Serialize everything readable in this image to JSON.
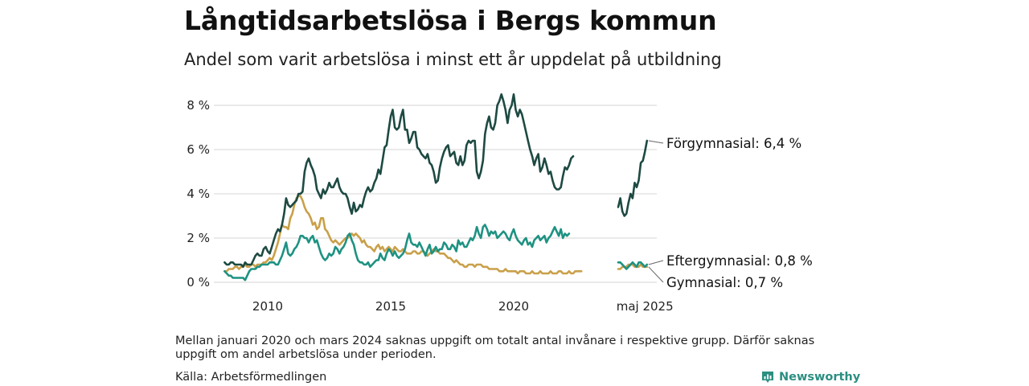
{
  "header": {
    "title": "Långtidsarbetslösa i Bergs kommun",
    "subtitle": "Andel som varit arbetslösa i minst ett år uppdelat på utbildning"
  },
  "footer": {
    "note": "Mellan januari 2020 och mars 2024 saknas uppgift om totalt antal invånare i respektive grupp. Därför saknas uppgift om andel arbetslösa under perioden.",
    "source": "Källa: Arbetsförmedlingen",
    "brand": "Newsworthy",
    "brand_icon": "newsworthy-logo-icon"
  },
  "colors": {
    "forgymnasial": "#1d4a42",
    "eftergymnasial": "#1e9282",
    "gymnasial": "#c9a04a",
    "grid": "#dddddd",
    "brand": "#2b8f81"
  },
  "chart_data": {
    "type": "line",
    "y_unit": "%",
    "ylim": [
      0,
      8.6
    ],
    "yticks": [
      "0 %",
      "2 %",
      "4 %",
      "6 %",
      "8 %"
    ],
    "xticks": [
      "2010",
      "2015",
      "2020",
      "maj 2025"
    ],
    "grid": "horizontal",
    "series": [
      {
        "name": "Förgymnasial",
        "end_label": "Förgymnasial: 6,4 %",
        "segments": [
          {
            "start": "2008-04",
            "values": [
              0.9,
              0.8,
              0.8,
              0.9,
              0.9,
              0.8,
              0.8,
              0.8,
              0.8,
              0.7,
              0.9,
              0.8,
              0.8,
              0.8,
              1.0,
              1.2,
              1.3,
              1.2,
              1.2,
              1.5,
              1.6,
              1.4,
              1.3,
              1.6,
              1.9,
              2.2,
              2.4,
              2.3,
              2.6,
              3.1,
              3.8,
              3.5,
              3.4,
              3.5,
              3.6,
              3.7,
              4.0,
              4.0,
              4.1,
              5.0,
              5.4,
              5.6,
              5.3,
              5.1,
              4.8,
              4.2,
              4.0,
              3.8,
              4.2,
              4.0,
              4.2,
              4.5,
              4.3,
              4.3,
              4.5,
              4.7,
              4.3,
              4.1,
              4.0,
              4.0,
              3.8,
              3.4,
              3.1,
              3.6,
              3.2,
              3.3,
              3.5,
              3.4,
              3.8,
              4.1,
              4.3,
              4.1,
              4.2,
              4.5,
              4.7,
              5.1,
              4.9,
              5.5,
              6.1,
              6.2,
              6.9,
              7.5,
              7.8,
              7.0,
              6.9,
              7.0,
              7.5,
              7.8,
              6.9,
              6.9,
              6.3,
              6.5,
              6.8,
              6.8,
              6.1,
              6.0,
              5.8,
              5.7,
              5.6,
              5.8,
              5.4,
              5.3,
              5.0,
              4.5,
              4.6,
              5.2,
              5.6,
              5.9,
              6.1,
              6.2,
              5.7,
              5.8,
              5.9,
              5.4,
              5.3,
              5.7,
              5.3,
              5.5,
              6.2,
              6.4,
              6.3,
              6.4,
              6.4,
              5.0,
              4.7,
              5.0,
              5.5,
              6.7,
              7.2,
              7.5,
              7.0,
              6.9,
              7.2,
              8.0,
              8.2,
              8.5,
              8.2,
              7.8,
              7.2,
              7.8,
              8.0,
              8.5,
              7.8,
              7.5,
              7.8,
              7.6,
              7.2,
              6.8,
              6.4,
              6.0,
              5.7,
              5.3,
              5.6,
              5.8,
              5.0,
              5.2,
              5.6,
              5.3,
              4.9,
              5.0,
              4.6,
              4.3,
              4.2,
              4.2,
              4.3,
              4.8,
              5.2,
              5.1,
              5.3,
              5.6,
              5.7
            ]
          },
          {
            "start": "2024-04",
            "values": [
              3.4,
              3.8,
              3.2,
              3.0,
              3.1,
              3.6,
              4.0,
              3.8,
              4.5,
              4.3,
              4.6,
              5.4,
              5.5,
              5.9,
              6.4
            ]
          }
        ]
      },
      {
        "name": "Eftergymnasial",
        "end_label": "Eftergymnasial: 0,8 %",
        "segments": [
          {
            "start": "2008-04",
            "values": [
              0.5,
              0.4,
              0.3,
              0.3,
              0.2,
              0.2,
              0.2,
              0.2,
              0.2,
              0.2,
              0.1,
              0.3,
              0.5,
              0.6,
              0.6,
              0.6,
              0.7,
              0.7,
              0.8,
              0.8,
              0.8,
              0.8,
              0.9,
              0.9,
              0.9,
              0.8,
              0.8,
              1.0,
              1.2,
              1.5,
              1.8,
              1.3,
              1.2,
              1.3,
              1.5,
              1.6,
              1.8,
              2.1,
              2.1,
              2.0,
              2.0,
              1.8,
              2.0,
              2.1,
              1.8,
              1.9,
              1.6,
              1.3,
              1.1,
              1.0,
              1.1,
              1.3,
              1.2,
              1.3,
              1.6,
              1.5,
              1.3,
              1.5,
              1.6,
              1.8,
              2.1,
              2.2,
              1.9,
              1.7,
              1.3,
              1.0,
              0.9,
              0.9,
              0.8,
              0.8,
              0.9,
              0.7,
              0.8,
              0.9,
              1.0,
              1.0,
              1.3,
              1.1,
              1.0,
              1.3,
              1.5,
              1.4,
              1.2,
              1.4,
              1.2,
              1.1,
              1.2,
              1.3,
              1.5,
              1.9,
              2.2,
              1.8,
              1.7,
              1.7,
              1.6,
              1.8,
              1.6,
              1.4,
              1.2,
              1.5,
              1.7,
              1.3,
              1.4,
              1.6,
              1.4,
              1.5,
              1.5,
              1.8,
              1.7,
              1.5,
              1.5,
              1.7,
              1.6,
              1.4,
              1.9,
              1.7,
              1.8,
              1.6,
              1.6,
              1.8,
              2.0,
              1.9,
              2.1,
              2.5,
              2.2,
              2.0,
              2.5,
              2.6,
              2.4,
              2.1,
              2.3,
              2.2,
              2.3,
              2.0,
              2.1,
              2.2,
              2.3,
              2.2,
              2.0,
              1.9,
              2.2,
              2.4,
              2.1,
              1.9,
              1.8,
              1.7,
              1.9,
              2.0,
              1.7,
              1.8,
              1.6,
              1.9,
              2.0,
              2.1,
              1.9,
              2.0,
              2.1,
              1.8,
              2.0,
              2.1,
              2.3,
              2.5,
              2.3,
              2.1,
              2.4,
              2.0,
              2.2,
              2.1,
              2.2
            ]
          },
          {
            "start": "2024-04",
            "values": [
              0.9,
              0.9,
              0.8,
              0.7,
              0.6,
              0.7,
              0.8,
              0.9,
              0.8,
              0.7,
              0.9,
              0.9,
              0.8,
              0.7,
              0.8
            ]
          }
        ]
      },
      {
        "name": "Gymnasial",
        "end_label": "Gymnasial: 0,7 %",
        "segments": [
          {
            "start": "2008-04",
            "values": [
              0.5,
              0.5,
              0.6,
              0.6,
              0.6,
              0.7,
              0.7,
              0.6,
              0.7,
              0.7,
              0.8,
              0.7,
              0.7,
              0.8,
              0.8,
              0.7,
              0.8,
              0.8,
              0.8,
              0.9,
              0.9,
              1.0,
              1.1,
              1.0,
              1.2,
              1.5,
              1.8,
              2.2,
              2.6,
              2.5,
              2.5,
              2.4,
              2.9,
              3.1,
              3.5,
              3.8,
              3.9,
              3.9,
              3.7,
              3.4,
              3.2,
              3.1,
              2.9,
              2.6,
              2.7,
              2.4,
              2.5,
              2.9,
              2.9,
              2.4,
              2.3,
              2.1,
              1.9,
              1.8,
              1.9,
              1.8,
              1.7,
              1.8,
              1.9,
              2.0,
              2.0,
              2.1,
              2.2,
              2.1,
              2.2,
              2.1,
              2.0,
              1.8,
              1.9,
              1.7,
              1.6,
              1.6,
              1.5,
              1.4,
              1.6,
              1.7,
              1.5,
              1.6,
              1.4,
              1.5,
              1.6,
              1.5,
              1.4,
              1.6,
              1.5,
              1.4,
              1.4,
              1.5,
              1.4,
              1.3,
              1.3,
              1.3,
              1.4,
              1.4,
              1.3,
              1.3,
              1.4,
              1.4,
              1.3,
              1.2,
              1.3,
              1.4,
              1.5,
              1.4,
              1.4,
              1.3,
              1.3,
              1.3,
              1.2,
              1.1,
              1.1,
              1.0,
              0.9,
              1.0,
              0.9,
              0.8,
              0.8,
              0.7,
              0.7,
              0.8,
              0.8,
              0.8,
              0.7,
              0.8,
              0.8,
              0.8,
              0.7,
              0.7,
              0.7,
              0.6,
              0.6,
              0.6,
              0.6,
              0.6,
              0.5,
              0.5,
              0.5,
              0.6,
              0.5,
              0.5,
              0.5,
              0.5,
              0.5,
              0.4,
              0.5,
              0.5,
              0.5,
              0.4,
              0.4,
              0.4,
              0.5,
              0.4,
              0.4,
              0.4,
              0.5,
              0.4,
              0.4,
              0.4,
              0.4,
              0.5,
              0.4,
              0.4,
              0.4,
              0.5,
              0.5,
              0.4,
              0.4,
              0.4,
              0.5,
              0.4,
              0.4,
              0.5,
              0.5,
              0.5,
              0.5
            ]
          },
          {
            "start": "2024-04",
            "values": [
              0.6,
              0.6,
              0.7,
              0.7,
              0.7,
              0.8,
              0.8,
              0.8,
              0.7,
              0.7,
              0.7,
              0.8,
              0.7,
              0.7,
              0.7
            ]
          }
        ]
      }
    ]
  }
}
